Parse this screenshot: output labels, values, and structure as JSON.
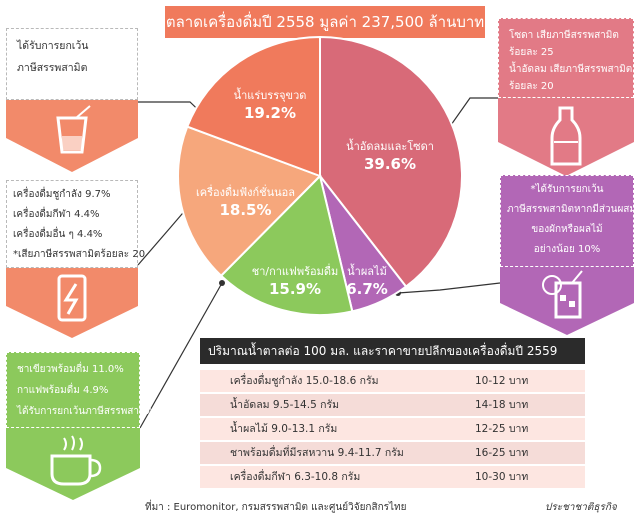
{
  "title": "ตลาดเครื่องดื่มปี 2558 มูลค่า 237,500 ล้านบาท",
  "colors": {
    "coral": "#f07a5c",
    "pink": "#d86a78",
    "purple": "#b267b6",
    "green": "#8cc95c",
    "peach": "#f6a77c",
    "salmon": "#f28a6a",
    "dark": "#2b2b2b",
    "tint": "#fde6e1"
  },
  "chart_data": {
    "type": "pie",
    "title": "ตลาดเครื่องดื่มปี 2558 มูลค่า 237,500 ล้านบาท",
    "slices": [
      {
        "name": "น้ำอัดลมและโซดา",
        "value": 39.6,
        "label": "39.6%",
        "color": "#d86a78"
      },
      {
        "name": "น้ำผลไม้",
        "value": 6.7,
        "label": "6.7%",
        "color": "#b267b6"
      },
      {
        "name": "ชา/กาแฟพร้อมดื่ม",
        "value": 15.9,
        "label": "15.9%",
        "color": "#8cc95c"
      },
      {
        "name": "เครื่องดื่มฟังก์ชั่นนอล",
        "value": 18.5,
        "label": "18.5%",
        "color": "#f6a77c"
      },
      {
        "name": "น้ำแร่บรรจุขวด",
        "value": 19.2,
        "label": "19.2%",
        "color": "#f07a5c"
      }
    ]
  },
  "notes": {
    "water": {
      "lines": [
        "ได้รับการยกเว้น",
        "ภาษีสรรพสามิต"
      ],
      "icon": "glass-icon"
    },
    "soda": {
      "lines": [
        "โซดา เสียภาษีสรรพสามิต",
        "ร้อยละ 25",
        "น้ำอัดลม เสียภาษีสรรพสามิต",
        "ร้อยละ 20"
      ],
      "icon": "bottle-icon"
    },
    "functional": {
      "lines": [
        "เครื่องดื่มชูกำลัง 9.7%",
        "เครื่องดื่มกีฬา 4.4%",
        "เครื่องดื่มอื่น ๆ 4.4%",
        "*เสียภาษีสรรพสามิตร้อยละ 20"
      ],
      "icon": "energy-can-icon"
    },
    "juice": {
      "lines": [
        "*ได้รับการยกเว้น",
        "ภาษีสรรพสามิตหากมีส่วนผสม",
        "ของผักหรือผลไม้",
        "อย่างน้อย 10%"
      ],
      "icon": "juice-glass-icon"
    },
    "tea": {
      "lines": [
        "ชาเขียวพร้อมดื่ม 11.0%",
        "กาแฟพร้อมดื่ม 4.9%",
        "ได้รับการยกเว้นภาษีสรรพสามิต"
      ],
      "icon": "coffee-cup-icon"
    }
  },
  "table": {
    "title": "ปริมาณน้ำตาลต่อ 100 มล. และราคาขายปลีกของเครื่องดื่มปี 2559",
    "rows": [
      {
        "item": "เครื่องดื่มชูกำลัง 15.0-18.6 กรัม",
        "price": "10-12 บาท"
      },
      {
        "item": "น้ำอัดลม 9.5-14.5 กรัม",
        "price": "14-18 บาท"
      },
      {
        "item": "น้ำผลไม้ 9.0-13.1 กรัม",
        "price": "12-25 บาท"
      },
      {
        "item": "ชาพร้อมดื่มที่มีรสหวาน 9.4-11.7 กรัม",
        "price": "16-25 บาท"
      },
      {
        "item": "เครื่องดื่มกีฬา 6.3-10.8 กรัม",
        "price": "10-30 บาท"
      }
    ]
  },
  "footer": {
    "source": "ที่มา : Euromonitor, กรมสรรพสามิต และศูนย์วิจัยกสิกรไทย",
    "credit": "ประชาชาติธุรกิจ"
  }
}
